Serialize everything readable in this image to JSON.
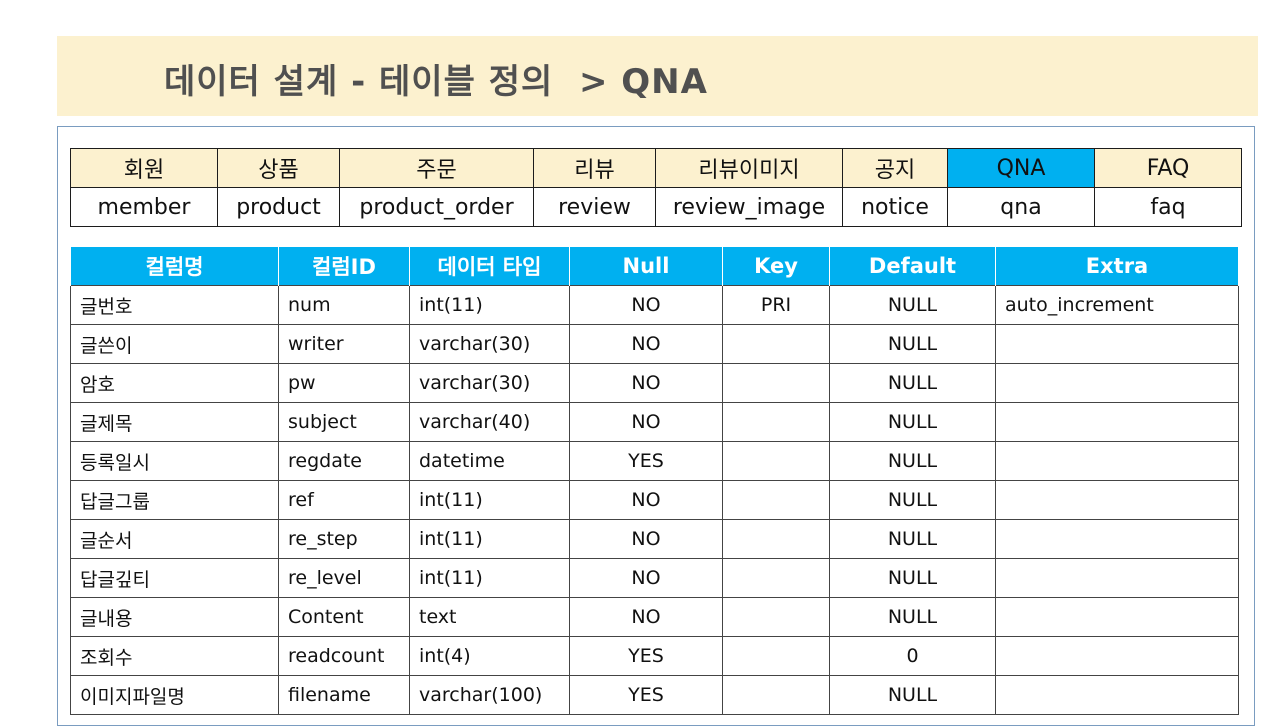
{
  "title": {
    "text": "데이터 설계 - 테이블 정의",
    "sub": "> QNA"
  },
  "tabs": [
    {
      "kr": "회원",
      "en": "member",
      "active": false
    },
    {
      "kr": "상품",
      "en": "product",
      "active": false
    },
    {
      "kr": "주문",
      "en": "product_order",
      "active": false
    },
    {
      "kr": "리뷰",
      "en": "review",
      "active": false
    },
    {
      "kr": "리뷰이미지",
      "en": "review_image",
      "active": false
    },
    {
      "kr": "공지",
      "en": "notice",
      "active": false
    },
    {
      "kr": "QNA",
      "en": "qna",
      "active": true
    },
    {
      "kr": "FAQ",
      "en": "faq",
      "active": false
    }
  ],
  "colors": {
    "header_bg": "#fcf1cf",
    "accent": "#00b0f0"
  },
  "columns_table": {
    "headers": [
      "컬럼명",
      "컬럼ID",
      "데이터 타입",
      "Null",
      "Key",
      "Default",
      "Extra"
    ],
    "rows": [
      [
        "글번호",
        "num",
        "int(11)",
        "NO",
        "PRI",
        "NULL",
        "auto_increment"
      ],
      [
        "글쓴이",
        "writer",
        "varchar(30)",
        "NO",
        "",
        "NULL",
        ""
      ],
      [
        "암호",
        "pw",
        "varchar(30)",
        "NO",
        "",
        "NULL",
        ""
      ],
      [
        "글제목",
        "subject",
        "varchar(40)",
        "NO",
        "",
        "NULL",
        ""
      ],
      [
        "등록일시",
        "regdate",
        "datetime",
        "YES",
        "",
        "NULL",
        ""
      ],
      [
        "답글그룹",
        "ref",
        "int(11)",
        "NO",
        "",
        "NULL",
        ""
      ],
      [
        "글순서",
        "re_step",
        "int(11)",
        "NO",
        "",
        "NULL",
        ""
      ],
      [
        "답글깊티",
        "re_level",
        "int(11)",
        "NO",
        "",
        "NULL",
        ""
      ],
      [
        "글내용",
        "Content",
        "text",
        "NO",
        "",
        "NULL",
        ""
      ],
      [
        "조회수",
        "readcount",
        "int(4)",
        "YES",
        "",
        "0",
        ""
      ],
      [
        "이미지파일명",
        "filename",
        "varchar(100)",
        "YES",
        "",
        "NULL",
        ""
      ]
    ]
  }
}
